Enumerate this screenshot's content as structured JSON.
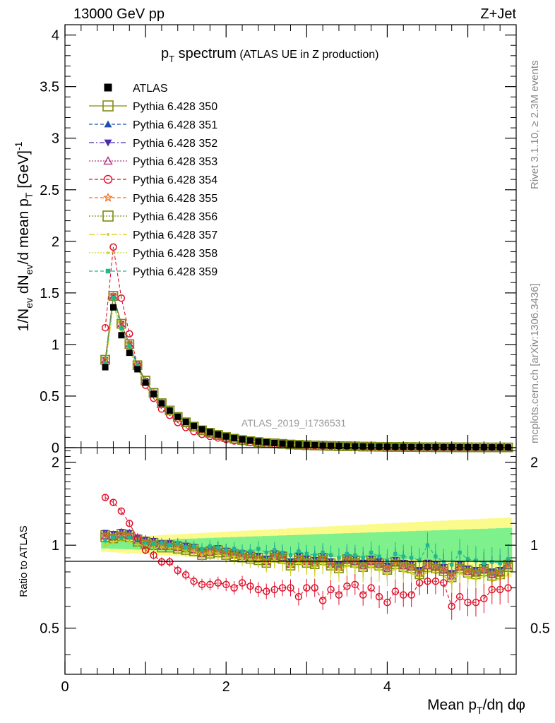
{
  "header": {
    "left": "13000 GeV pp",
    "right": "Z+Jet"
  },
  "side": {
    "rivet": "Rivet 3.1.10, ≥ 2.3M events",
    "mcplots": "mcplots.cern.ch [arXiv:1306.3436]"
  },
  "watermark": "ATLAS_2019_I1736531",
  "chart_data": [
    {
      "type": "line",
      "title_main": "p",
      "title_sub": "T",
      "title_word": " spectrum",
      "title_paren": " (ATLAS UE in Z production)",
      "ylabel": "1/N_ev dN_ev/d mean p_T [GeV]^-1",
      "ylim": [
        0,
        4.1
      ],
      "xlim": [
        0,
        5.6
      ],
      "yticks": [
        0,
        0.5,
        1,
        1.5,
        2,
        2.5,
        3,
        3.5,
        4
      ],
      "ytick_labels": [
        "0",
        "0.5",
        "1",
        "1.5",
        "2",
        "2.5",
        "3",
        "3.5",
        "4"
      ],
      "legend_position": "top-left",
      "x": [
        0.5,
        0.6,
        0.7,
        0.8,
        0.9,
        1.0,
        1.1,
        1.2,
        1.3,
        1.4,
        1.5,
        1.6,
        1.7,
        1.8,
        1.9,
        2.0,
        2.1,
        2.2,
        2.3,
        2.4,
        2.5,
        2.6,
        2.7,
        2.8,
        2.9,
        3.0,
        3.1,
        3.2,
        3.3,
        3.4,
        3.5,
        3.6,
        3.7,
        3.8,
        3.9,
        4.0,
        4.1,
        4.2,
        4.3,
        4.4,
        4.5,
        4.6,
        4.7,
        4.8,
        4.9,
        5.0,
        5.1,
        5.2,
        5.3,
        5.4,
        5.5
      ],
      "series": [
        {
          "name": "ATLAS",
          "values": [
            0.78,
            1.36,
            1.09,
            0.92,
            0.76,
            0.63,
            0.52,
            0.43,
            0.36,
            0.3,
            0.25,
            0.21,
            0.178,
            0.151,
            0.128,
            0.109,
            0.093,
            0.08,
            0.069,
            0.06,
            0.052,
            0.045,
            0.04,
            0.035,
            0.031,
            0.027,
            0.024,
            0.021,
            0.019,
            0.017,
            0.015,
            0.014,
            0.012,
            0.011,
            0.01,
            0.009,
            0.008,
            0.0075,
            0.0068,
            0.0062,
            0.0056,
            0.0051,
            0.0047,
            0.0043,
            0.0039,
            0.0036,
            0.0033,
            0.003,
            0.0028,
            0.0026,
            0.0024
          ]
        },
        {
          "name": "Pythia 6.428 350"
        },
        {
          "name": "Pythia 6.428 351"
        },
        {
          "name": "Pythia 6.428 352"
        },
        {
          "name": "Pythia 6.428 353"
        },
        {
          "name": "Pythia 6.428 354"
        },
        {
          "name": "Pythia 6.428 355"
        },
        {
          "name": "Pythia 6.428 356"
        },
        {
          "name": "Pythia 6.428 357"
        },
        {
          "name": "Pythia 6.428 358"
        },
        {
          "name": "Pythia 6.428 359"
        }
      ]
    },
    {
      "type": "line",
      "ylabel": "Ratio to ATLAS",
      "xlabel": "Mean p_T/dη dφ",
      "xlim": [
        0,
        5.6
      ],
      "ylim": [
        0.34,
        2.26
      ],
      "xticks": [
        0,
        2,
        4
      ],
      "xtick_labels": [
        "0",
        "2",
        "4"
      ],
      "yticks": [
        0.5,
        1,
        2
      ],
      "ytick_labels": [
        "0.5",
        "1",
        "2"
      ],
      "ratio_354": [
        1.49,
        1.43,
        1.33,
        1.2,
        1.06,
        0.96,
        0.92,
        0.87,
        0.87,
        0.81,
        0.78,
        0.74,
        0.72,
        0.72,
        0.73,
        0.72,
        0.7,
        0.73,
        0.71,
        0.69,
        0.68,
        0.69,
        0.7,
        0.7,
        0.65,
        0.7,
        0.7,
        0.63,
        0.69,
        0.66,
        0.71,
        0.72,
        0.66,
        0.7,
        0.65,
        0.62,
        0.68,
        0.66,
        0.66,
        0.73,
        0.74,
        0.74,
        0.73,
        0.6,
        0.65,
        0.62,
        0.62,
        0.64,
        0.69,
        0.69,
        0.7
      ],
      "ratio_350": [
        1.09,
        1.08,
        1.1,
        1.09,
        1.05,
        1.03,
        1.02,
        1.0,
        1.0,
        0.99,
        0.98,
        0.97,
        0.94,
        0.95,
        0.96,
        0.94,
        0.93,
        0.92,
        0.91,
        0.9,
        0.88,
        0.92,
        0.91,
        0.86,
        0.9,
        0.88,
        0.87,
        0.9,
        0.86,
        0.84,
        0.89,
        0.88,
        0.85,
        0.88,
        0.86,
        0.83,
        0.87,
        0.85,
        0.84,
        0.8,
        0.85,
        0.84,
        0.82,
        0.78,
        0.84,
        0.81,
        0.8,
        0.82,
        0.79,
        0.8,
        0.85
      ],
      "ratio_359": [
        1.04,
        1.07,
        1.06,
        1.07,
        1.04,
        1.02,
        1.01,
        1.02,
        1.0,
        1.02,
        0.98,
        0.99,
        0.97,
        0.99,
        0.98,
        0.96,
        0.97,
        0.95,
        0.95,
        0.97,
        0.94,
        0.96,
        0.94,
        0.92,
        0.95,
        0.93,
        0.92,
        0.94,
        0.92,
        0.9,
        0.93,
        0.92,
        0.9,
        0.94,
        0.91,
        0.88,
        0.93,
        0.91,
        0.9,
        0.88,
        1.0,
        0.91,
        0.87,
        0.85,
        0.94,
        0.89,
        0.88,
        0.86,
        0.87,
        0.86,
        0.89
      ],
      "ratio_357": [
        1.0,
        1.02,
        1.04,
        1.03,
        1.01,
        0.99,
        0.98,
        0.98,
        0.97,
        0.97,
        0.95,
        0.95,
        0.92,
        0.94,
        0.93,
        0.91,
        0.9,
        0.89,
        0.88,
        0.88,
        0.85,
        0.88,
        0.86,
        0.83,
        0.86,
        0.84,
        0.83,
        0.85,
        0.82,
        0.8,
        0.84,
        0.83,
        0.8,
        0.83,
        0.81,
        0.78,
        0.82,
        0.8,
        0.79,
        0.76,
        0.8,
        0.79,
        0.77,
        0.73,
        0.79,
        0.76,
        0.75,
        0.77,
        0.74,
        0.75,
        0.78
      ]
    }
  ]
}
